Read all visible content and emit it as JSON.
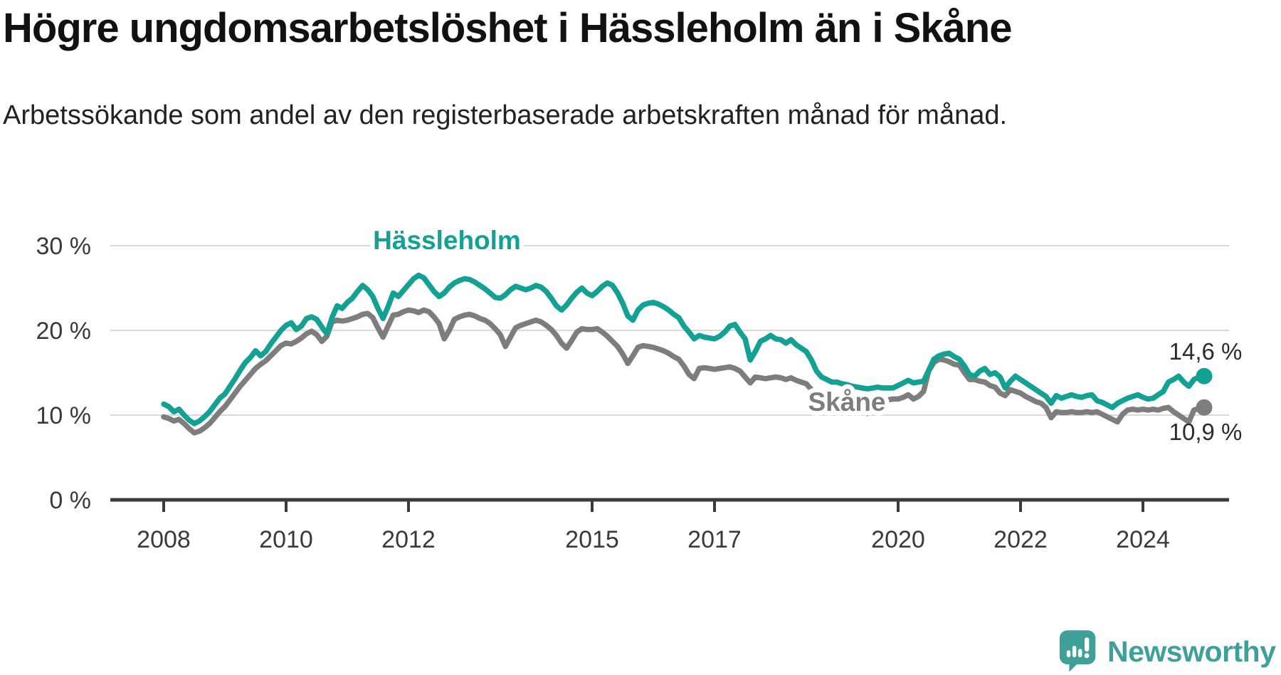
{
  "header": {
    "title": "Högre ungdomsarbetslöshet i Hässleholm än i Skåne",
    "subtitle": "Arbetssökande som andel av den registerbaserade arbetskraften månad för månad."
  },
  "branding": {
    "logo_text": "Newsworthy",
    "logo_color": "#3fa09a"
  },
  "chart_data": {
    "type": "line",
    "title": "Högre ungdomsarbetslöshet i Hässleholm än i Skåne",
    "subtitle": "Arbetssökande som andel av den registerbaserade arbetskraften månad för månad.",
    "unit": "%",
    "grid": true,
    "legend_position": "inline-labels-on-lines",
    "ylim": [
      0,
      31.5
    ],
    "y_ticks": [
      0,
      10,
      20,
      30
    ],
    "y_tick_labels": [
      "0 %",
      "10 %",
      "20 %",
      "30 %"
    ],
    "x_ticks": [
      2008,
      2010,
      2012,
      2015,
      2017,
      2020,
      2022,
      2024
    ],
    "x_tick_labels": [
      "2008",
      "2010",
      "2012",
      "2015",
      "2017",
      "2020",
      "2022",
      "2024"
    ],
    "start": {
      "year": 2008,
      "month": 1
    },
    "frequency": "monthly",
    "axis_color": "#3a3a3a",
    "grid_color": "#d9d9d9",
    "series": [
      {
        "name": "Skåne",
        "color": "#7d7d7d",
        "end_label": "10,9 %",
        "end_value": 10.9,
        "values": [
          9.8,
          9.6,
          9.3,
          9.5,
          9.0,
          8.4,
          7.9,
          8.1,
          8.5,
          9.0,
          9.7,
          10.4,
          11.0,
          11.8,
          12.6,
          13.4,
          14.1,
          14.8,
          15.5,
          16.0,
          16.4,
          17.0,
          17.6,
          18.2,
          18.5,
          18.4,
          18.7,
          19.1,
          19.6,
          19.9,
          19.5,
          18.7,
          19.3,
          21.0,
          21.2,
          21.1,
          21.2,
          21.4,
          21.6,
          21.9,
          22.0,
          21.5,
          20.3,
          19.2,
          20.5,
          21.8,
          21.9,
          22.2,
          22.4,
          22.3,
          22.1,
          22.4,
          22.2,
          21.6,
          20.8,
          19.0,
          20.0,
          21.3,
          21.6,
          21.8,
          21.9,
          21.7,
          21.4,
          21.2,
          20.8,
          20.2,
          19.5,
          18.1,
          19.2,
          20.3,
          20.6,
          20.8,
          21.0,
          21.2,
          21.0,
          20.6,
          20.1,
          19.4,
          18.5,
          17.9,
          18.8,
          19.8,
          20.2,
          20.1,
          20.1,
          20.2,
          19.8,
          19.3,
          18.7,
          18.1,
          17.2,
          16.1,
          17.0,
          18.0,
          18.2,
          18.1,
          18.0,
          17.8,
          17.6,
          17.3,
          16.9,
          16.6,
          15.8,
          14.8,
          14.3,
          15.5,
          15.6,
          15.5,
          15.4,
          15.5,
          15.6,
          15.7,
          15.5,
          15.2,
          14.5,
          13.8,
          14.5,
          14.4,
          14.3,
          14.4,
          14.5,
          14.4,
          14.2,
          14.4,
          14.1,
          13.9,
          13.7,
          13.0,
          12.2,
          11.7,
          11.5,
          11.6,
          11.8,
          11.7,
          11.6,
          11.5,
          11.3,
          10.8,
          10.2,
          10.6,
          11.2,
          11.6,
          11.8,
          11.9,
          11.9,
          12.1,
          12.4,
          11.9,
          12.2,
          12.8,
          15.2,
          16.2,
          16.6,
          16.5,
          16.3,
          16.0,
          15.9,
          15.0,
          14.2,
          14.2,
          14.0,
          13.9,
          13.5,
          13.3,
          12.6,
          12.3,
          13.0,
          12.8,
          12.6,
          12.2,
          11.9,
          11.6,
          11.4,
          10.9,
          9.7,
          10.4,
          10.3,
          10.3,
          10.4,
          10.3,
          10.3,
          10.4,
          10.3,
          10.4,
          10.1,
          9.8,
          9.5,
          9.2,
          10.1,
          10.6,
          10.7,
          10.6,
          10.7,
          10.6,
          10.7,
          10.6,
          10.8,
          10.9,
          10.4,
          10.0,
          9.6,
          9.2,
          10.6,
          10.8,
          10.9
        ]
      },
      {
        "name": "Hässleholm",
        "color": "#12a192",
        "end_label": "14,6 %",
        "end_value": 14.6,
        "values": [
          11.3,
          11.0,
          10.4,
          10.7,
          10.0,
          9.4,
          9.0,
          9.3,
          9.8,
          10.4,
          11.2,
          12.0,
          12.5,
          13.4,
          14.3,
          15.3,
          16.2,
          16.8,
          17.6,
          17.0,
          17.5,
          18.4,
          19.2,
          20.0,
          20.6,
          20.9,
          20.1,
          20.5,
          21.4,
          21.6,
          21.3,
          20.4,
          19.6,
          21.5,
          22.9,
          22.6,
          23.3,
          23.8,
          24.6,
          25.3,
          24.8,
          24.0,
          22.6,
          21.4,
          22.8,
          24.4,
          24.0,
          24.7,
          25.4,
          26.1,
          26.5,
          26.2,
          25.4,
          24.6,
          24.0,
          24.4,
          25.1,
          25.6,
          25.9,
          26.1,
          26.0,
          25.7,
          25.3,
          24.9,
          24.4,
          23.9,
          23.8,
          24.2,
          24.8,
          25.2,
          25.0,
          24.8,
          25.0,
          25.3,
          25.1,
          24.6,
          23.8,
          22.9,
          22.4,
          23.0,
          23.8,
          24.5,
          25.0,
          24.4,
          24.1,
          24.6,
          25.2,
          25.6,
          25.3,
          24.4,
          23.2,
          21.7,
          21.2,
          22.4,
          23.0,
          23.2,
          23.3,
          23.1,
          22.8,
          22.4,
          21.9,
          21.5,
          20.5,
          19.8,
          19.0,
          19.4,
          19.2,
          19.1,
          19.0,
          19.3,
          19.8,
          20.5,
          20.7,
          19.8,
          19.0,
          16.5,
          17.5,
          18.7,
          19.0,
          19.4,
          19.0,
          18.9,
          18.5,
          18.9,
          18.3,
          17.9,
          17.5,
          16.5,
          15.2,
          14.5,
          14.2,
          13.9,
          13.9,
          13.7,
          13.6,
          13.4,
          13.3,
          13.2,
          13.1,
          13.2,
          13.3,
          13.2,
          13.2,
          13.2,
          13.5,
          13.8,
          14.1,
          13.8,
          13.9,
          14.0,
          15.3,
          16.6,
          17.0,
          17.2,
          17.3,
          16.9,
          16.6,
          15.8,
          14.8,
          14.6,
          15.2,
          15.5,
          14.8,
          15.0,
          14.5,
          13.2,
          14.0,
          14.6,
          14.2,
          13.8,
          13.4,
          13.0,
          12.6,
          12.2,
          11.4,
          12.3,
          12.0,
          12.2,
          12.4,
          12.2,
          12.1,
          12.3,
          12.4,
          11.7,
          11.5,
          11.2,
          10.9,
          11.4,
          11.7,
          12.0,
          12.2,
          12.4,
          12.1,
          11.9,
          12.0,
          12.4,
          12.8,
          13.9,
          14.2,
          14.6,
          13.9,
          13.4,
          14.2,
          14.5,
          14.6
        ]
      }
    ]
  }
}
